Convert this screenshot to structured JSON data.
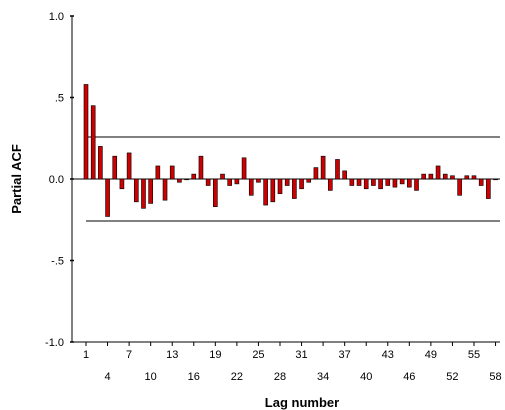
{
  "chart_data": {
    "type": "bar",
    "title": "",
    "xlabel": "Lag number",
    "ylabel": "Partial ACF",
    "ylim": [
      -1.0,
      1.0
    ],
    "yticks": [
      {
        "value": 1.0,
        "label": "1.0"
      },
      {
        "value": 0.5,
        "label": ".5"
      },
      {
        "value": 0.0,
        "label": "0.0"
      },
      {
        "value": -0.5,
        "label": "-.5"
      },
      {
        "value": -1.0,
        "label": "-1.0"
      }
    ],
    "xtick_labels_row1": [
      "1",
      "7",
      "13",
      "19",
      "25",
      "31",
      "37",
      "43",
      "49",
      "55"
    ],
    "xtick_labels_row2": [
      "4",
      "10",
      "16",
      "22",
      "28",
      "34",
      "40",
      "46",
      "52",
      "58"
    ],
    "confidence_limits": [
      0.26,
      -0.26
    ],
    "bar_color": "#cc0000",
    "bar_stroke": "#000000",
    "lags": [
      1,
      2,
      3,
      4,
      5,
      6,
      7,
      8,
      9,
      10,
      11,
      12,
      13,
      14,
      15,
      16,
      17,
      18,
      19,
      20,
      21,
      22,
      23,
      24,
      25,
      26,
      27,
      28,
      29,
      30,
      31,
      32,
      33,
      34,
      35,
      36,
      37,
      38,
      39,
      40,
      41,
      42,
      43,
      44,
      45,
      46,
      47,
      48,
      49,
      50,
      51,
      52,
      53,
      54,
      55,
      56,
      57,
      58
    ],
    "values": [
      0.58,
      0.45,
      0.2,
      -0.23,
      0.14,
      -0.06,
      0.16,
      -0.14,
      -0.18,
      -0.15,
      0.08,
      -0.13,
      0.08,
      -0.02,
      0.0,
      0.03,
      0.14,
      -0.04,
      -0.17,
      0.03,
      -0.04,
      -0.03,
      0.13,
      -0.1,
      -0.02,
      -0.16,
      -0.14,
      -0.09,
      -0.04,
      -0.12,
      -0.06,
      -0.02,
      0.07,
      0.14,
      -0.07,
      0.12,
      0.05,
      -0.04,
      -0.04,
      -0.06,
      -0.04,
      -0.06,
      -0.04,
      -0.05,
      -0.03,
      -0.05,
      -0.07,
      0.03,
      0.03,
      0.08,
      0.03,
      0.02,
      -0.1,
      0.02,
      0.02,
      -0.04,
      -0.12,
      0.0
    ]
  }
}
